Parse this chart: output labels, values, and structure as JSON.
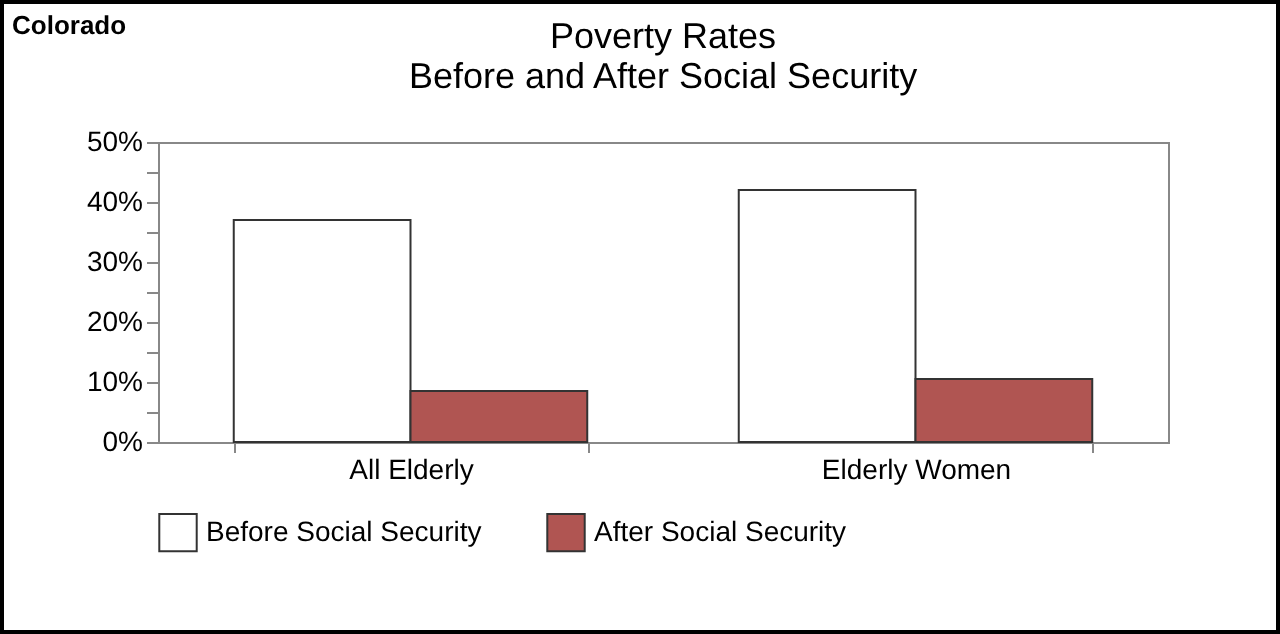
{
  "chart_data": {
    "type": "bar",
    "title": [
      "Poverty Rates",
      "Before and After Social Security"
    ],
    "annotations": [
      "Colorado"
    ],
    "categories": [
      "All Elderly",
      "Elderly Women"
    ],
    "series": [
      {
        "name": "Before Social Security",
        "color": "#ffffff",
        "values": [
          37,
          42
        ]
      },
      {
        "name": "After Social Security",
        "color": "#b05552",
        "values": [
          8.5,
          10.5
        ]
      }
    ],
    "ylim": [
      0,
      50
    ],
    "yticks": [
      {
        "value": 0,
        "label": "0%"
      },
      {
        "value": 5,
        "label": null
      },
      {
        "value": 10,
        "label": "10%"
      },
      {
        "value": 15,
        "label": null
      },
      {
        "value": 20,
        "label": "20%"
      },
      {
        "value": 25,
        "label": null
      },
      {
        "value": 30,
        "label": "30%"
      },
      {
        "value": 35,
        "label": null
      },
      {
        "value": 40,
        "label": "40%"
      },
      {
        "value": 45,
        "label": null
      },
      {
        "value": 50,
        "label": "50%"
      }
    ],
    "grid": false,
    "legend": "bottom"
  }
}
